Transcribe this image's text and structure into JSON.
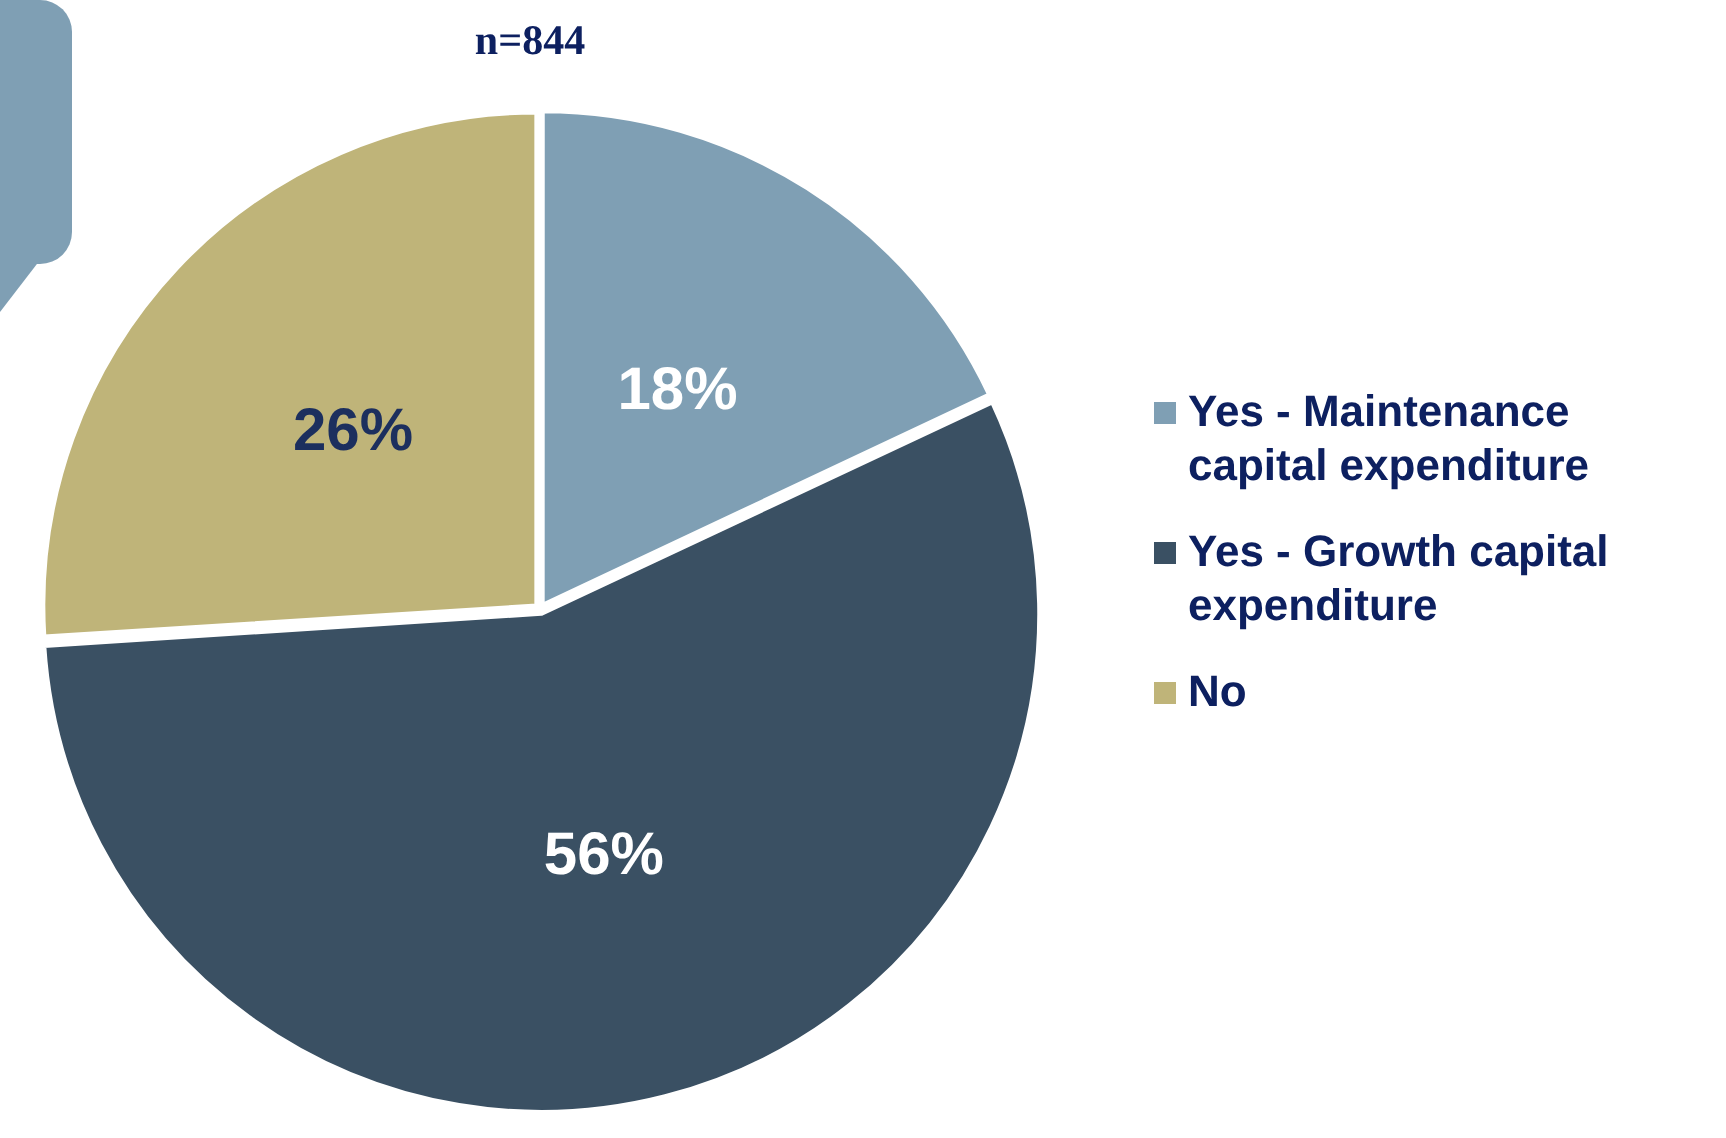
{
  "chart_data": {
    "type": "pie",
    "title": "n=844",
    "categories": [
      "Yes - Maintenance capital expenditure",
      "Yes - Growth capital expenditure",
      "No"
    ],
    "values": [
      18,
      56,
      26
    ],
    "colors": [
      "#7f9fb4",
      "#3a5063",
      "#bfb479"
    ],
    "value_labels": [
      "18%",
      "56%",
      "26%"
    ],
    "legend": "right"
  }
}
